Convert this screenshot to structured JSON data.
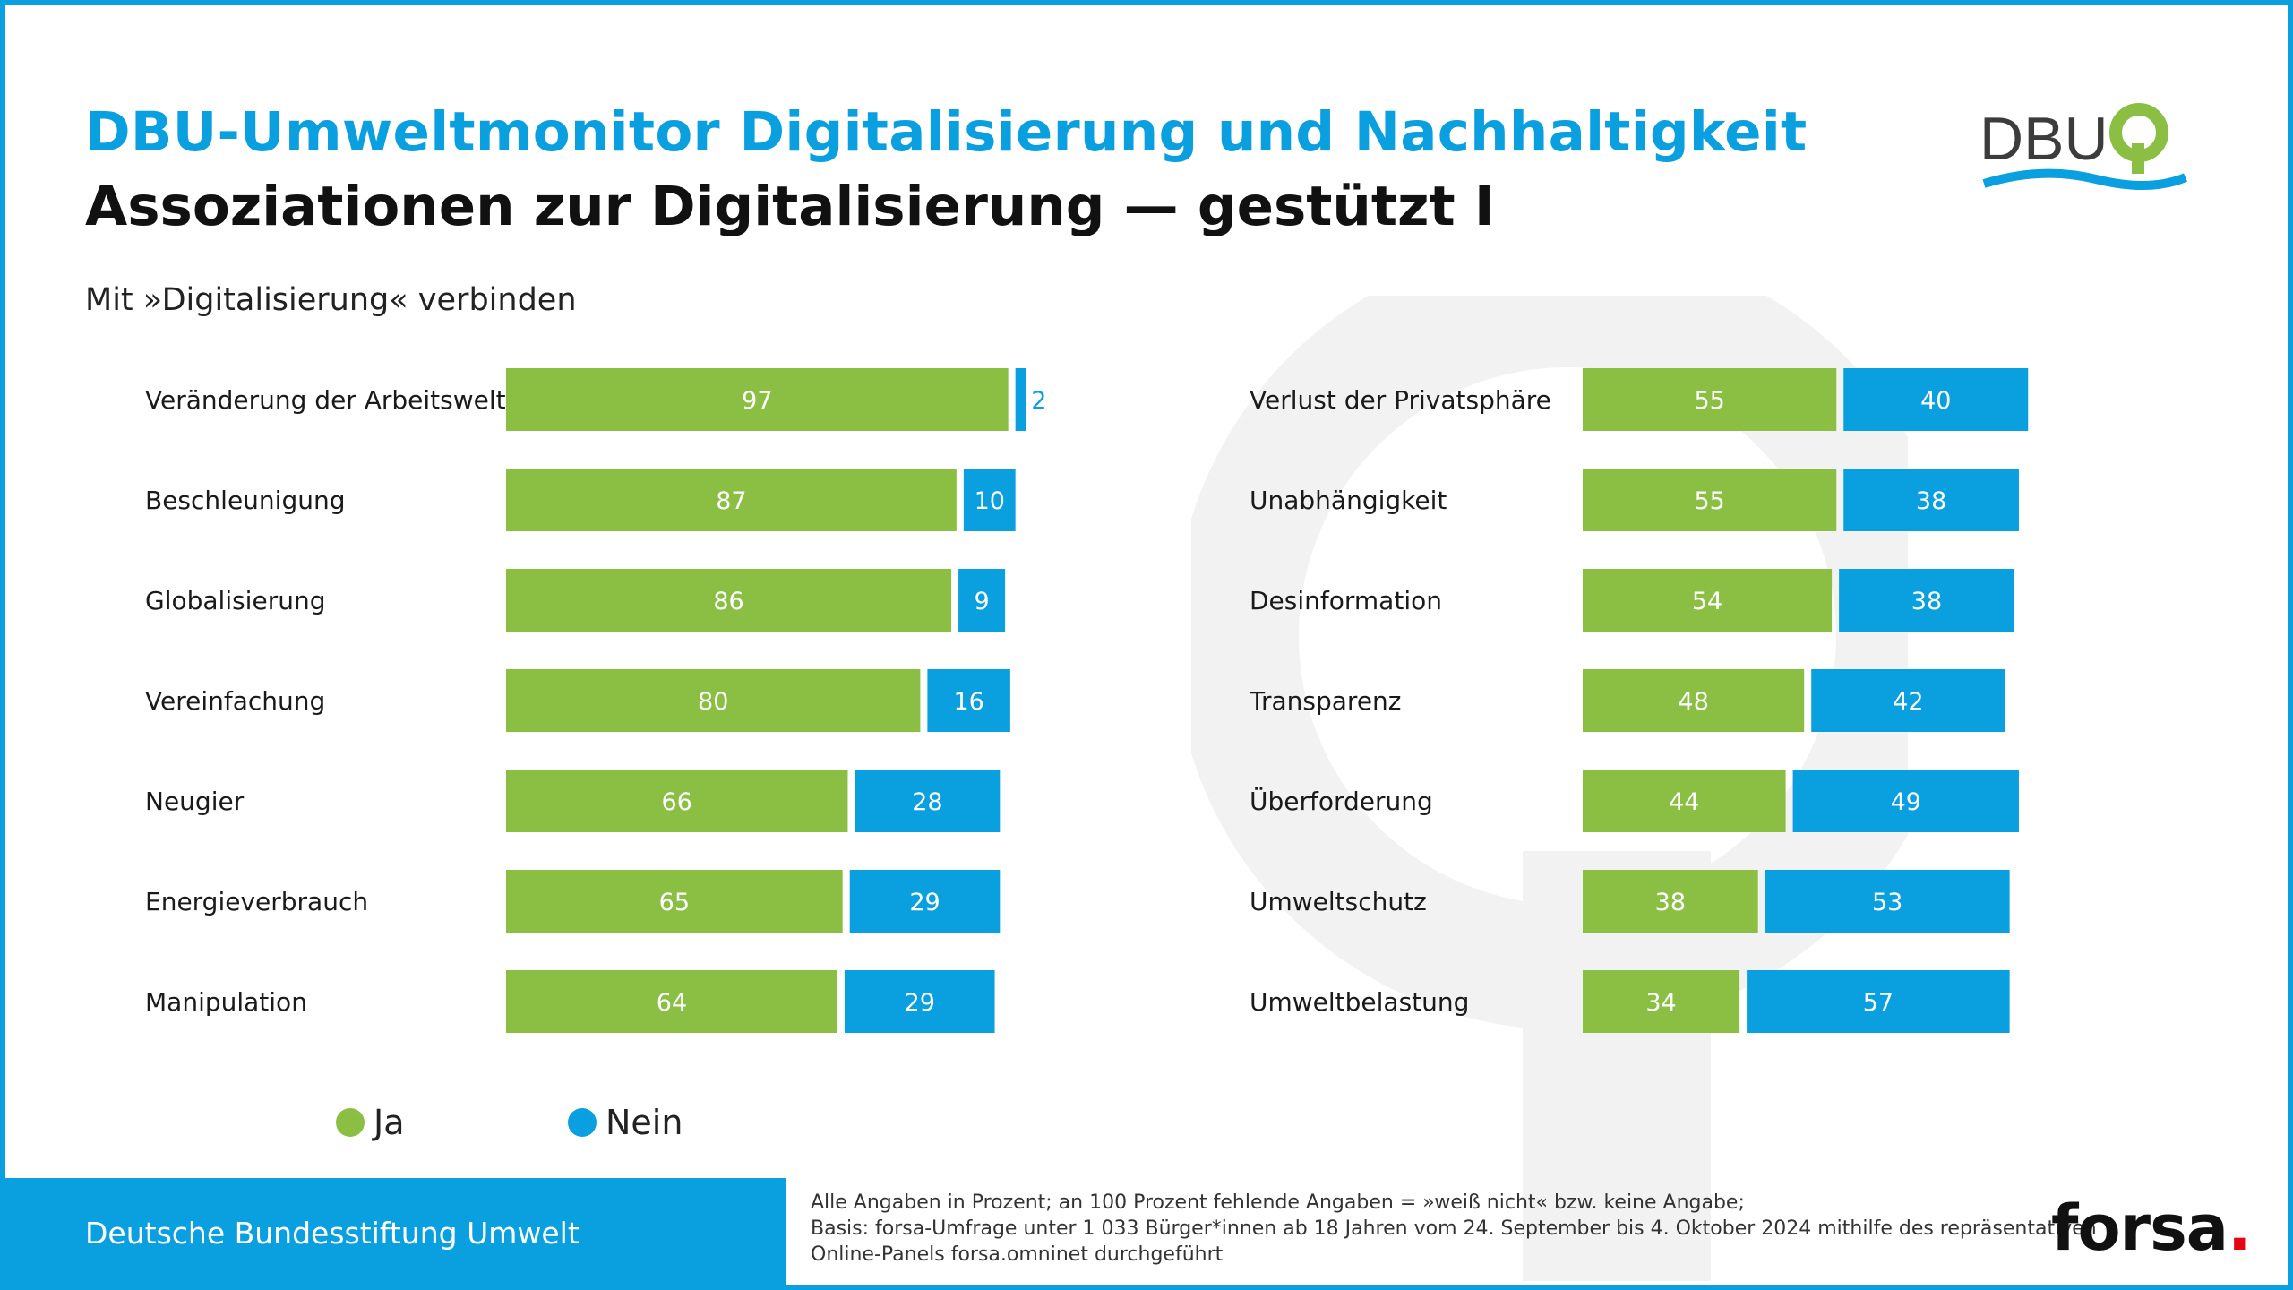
{
  "header": {
    "title": "DBU-Umweltmonitor Digitalisierung und Nachhaltigkeit",
    "subtitle": "Assoziationen zur Digitalisierung — gestützt I",
    "question": "Mit »Digitalisierung« verbinden"
  },
  "logo": {
    "text": "DBU"
  },
  "colors": {
    "ja": "#8bbf44",
    "nein": "#0a9fdf",
    "brand": "#0a9fdf"
  },
  "chart_data": [
    {
      "type": "bar",
      "orientation": "horizontal",
      "stacked": true,
      "categories": [
        "Veränderung der Arbeitswelt",
        "Beschleunigung",
        "Globalisierung",
        "Vereinfachung",
        "Neugier",
        "Energieverbrauch",
        "Manipulation"
      ],
      "series": [
        {
          "name": "Ja",
          "values": [
            97,
            87,
            86,
            80,
            66,
            65,
            64
          ]
        },
        {
          "name": "Nein",
          "values": [
            2,
            10,
            9,
            16,
            28,
            29,
            29
          ]
        }
      ]
    },
    {
      "type": "bar",
      "orientation": "horizontal",
      "stacked": true,
      "categories": [
        "Verlust der Privatsphäre",
        "Unabhängigkeit",
        "Desinformation",
        "Transparenz",
        "Überforderung",
        "Umweltschutz",
        "Umweltbelastung"
      ],
      "series": [
        {
          "name": "Ja",
          "values": [
            55,
            55,
            54,
            48,
            44,
            38,
            34
          ]
        },
        {
          "name": "Nein",
          "values": [
            40,
            38,
            38,
            42,
            49,
            53,
            57
          ]
        }
      ]
    }
  ],
  "legend": {
    "ja": "Ja",
    "nein": "Nein"
  },
  "footer": {
    "organization": "Deutsche Bundesstiftung Umwelt",
    "notes": [
      "Alle Angaben in Prozent; an 100 Prozent fehlende Angaben = »weiß nicht« bzw. keine Angabe;",
      "Basis: forsa-Umfrage unter 1 033 Bürger*innen ab 18 Jahren vom 24. September bis 4. Oktober 2024 mithilfe des repräsentativen",
      "Online-Panels forsa.omninet durchgeführt"
    ],
    "brand": "forsa",
    "brand_dot": "."
  }
}
